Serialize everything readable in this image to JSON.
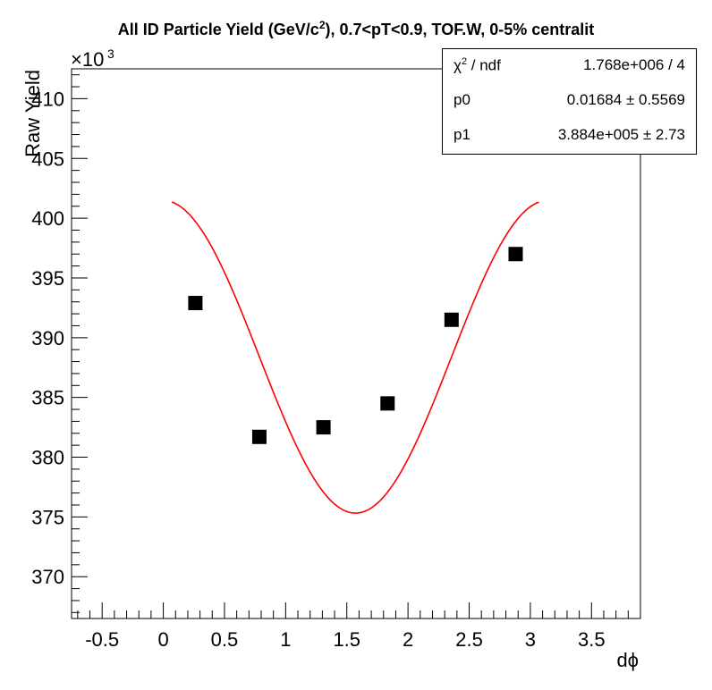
{
  "title": {
    "text_before_sup": "All ID Particle Yield (GeV/c",
    "sup": "2",
    "text_after_sup": "), 0.7<pT<0.9, TOF.W, 0-5% centralit"
  },
  "stats": {
    "chi2_label_chi": "χ",
    "chi2_label_sup": "2",
    "chi2_label_rest": " / ndf",
    "chi2_value": "1.768e+006 / 4",
    "p0_label": "p0",
    "p0_value": "0.01684 ± 0.5569",
    "p1_label": "p1",
    "p1_value": "3.884e+005 ±  2.73"
  },
  "chart_data": {
    "type": "scatter",
    "xlabel": "dϕ",
    "ylabel": "Raw Yield",
    "y_exponent_label": "×10",
    "y_exponent_sup": "3",
    "xlim": [
      -0.75,
      3.9
    ],
    "ylim": [
      366.5,
      412.5
    ],
    "x_ticks": [
      -0.5,
      0,
      0.5,
      1,
      1.5,
      2,
      2.5,
      3,
      3.5
    ],
    "x_tick_labels": [
      "-0.5",
      "0",
      "0.5",
      "1",
      "1.5",
      "2",
      "2.5",
      "3",
      "3.5"
    ],
    "y_ticks": [
      370,
      375,
      380,
      385,
      390,
      395,
      400,
      405,
      410
    ],
    "y_tick_labels": [
      "370",
      "375",
      "380",
      "385",
      "390",
      "395",
      "400",
      "405",
      "410"
    ],
    "points": {
      "x": [
        0.262,
        0.785,
        1.309,
        1.833,
        2.356,
        2.88
      ],
      "y": [
        392.9,
        381.7,
        382.5,
        384.5,
        391.5,
        397.0
      ],
      "color": "#000000",
      "marker": "square"
    },
    "fit": {
      "function": "p1*(1+2*p0*cos(2x))",
      "p0": 0.01684,
      "p1": 388.4,
      "x_range": [
        0.07,
        3.07
      ],
      "color": "#ff0000"
    },
    "grid": false,
    "legend": "top-right"
  }
}
